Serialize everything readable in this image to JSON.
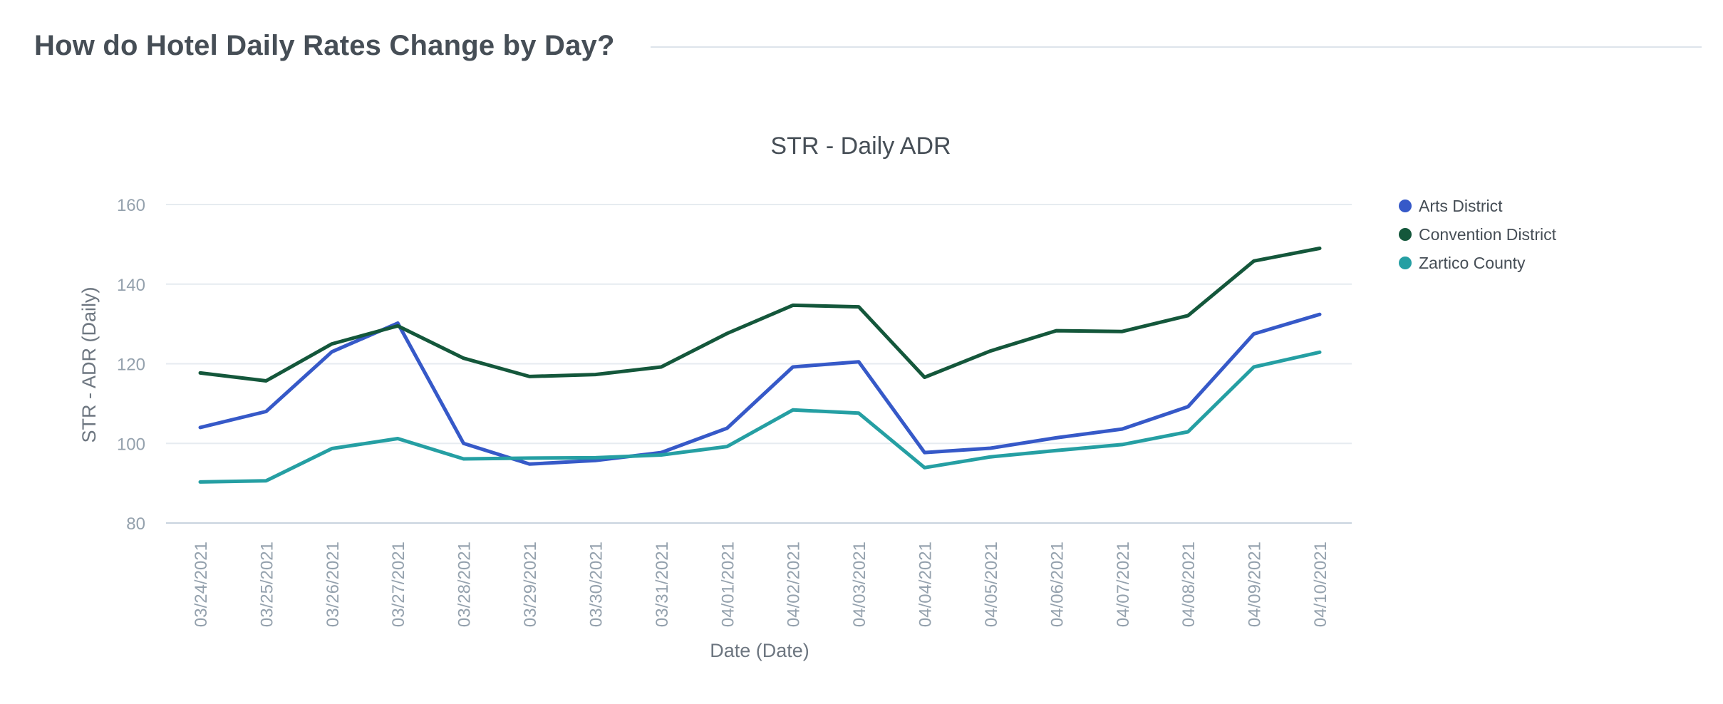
{
  "header": {
    "title": "How do Hotel Daily Rates Change by Day?"
  },
  "chart_data": {
    "type": "line",
    "title": "STR - Daily ADR",
    "xlabel": "Date (Date)",
    "ylabel": "STR - ADR (Daily)",
    "ylim": [
      80,
      160
    ],
    "yticks": [
      80,
      100,
      120,
      140,
      160
    ],
    "grid": true,
    "legend_position": "top-right",
    "categories": [
      "03/24/2021",
      "03/25/2021",
      "03/26/2021",
      "03/27/2021",
      "03/28/2021",
      "03/29/2021",
      "03/30/2021",
      "03/31/2021",
      "04/01/2021",
      "04/02/2021",
      "04/03/2021",
      "04/04/2021",
      "04/05/2021",
      "04/06/2021",
      "04/07/2021",
      "04/08/2021",
      "04/09/2021",
      "04/10/2021"
    ],
    "series": [
      {
        "name": "Arts District",
        "color": "#3659c8",
        "values": [
          104.0,
          108.0,
          123.0,
          130.2,
          100.0,
          94.8,
          95.7,
          97.7,
          103.8,
          119.2,
          120.5,
          97.7,
          98.8,
          101.4,
          103.6,
          109.2,
          127.5,
          132.4
        ]
      },
      {
        "name": "Convention District",
        "color": "#14573b",
        "values": [
          117.7,
          115.7,
          125.0,
          129.5,
          121.4,
          116.8,
          117.3,
          119.2,
          127.6,
          134.7,
          134.3,
          116.6,
          123.2,
          128.3,
          128.1,
          132.1,
          145.8,
          149.0
        ]
      },
      {
        "name": "Zartico County",
        "color": "#259fa3",
        "values": [
          90.3,
          90.6,
          98.7,
          101.2,
          96.1,
          96.3,
          96.4,
          97.1,
          99.2,
          108.4,
          107.6,
          93.9,
          96.6,
          98.2,
          99.7,
          102.9,
          119.2,
          122.9
        ]
      }
    ]
  }
}
